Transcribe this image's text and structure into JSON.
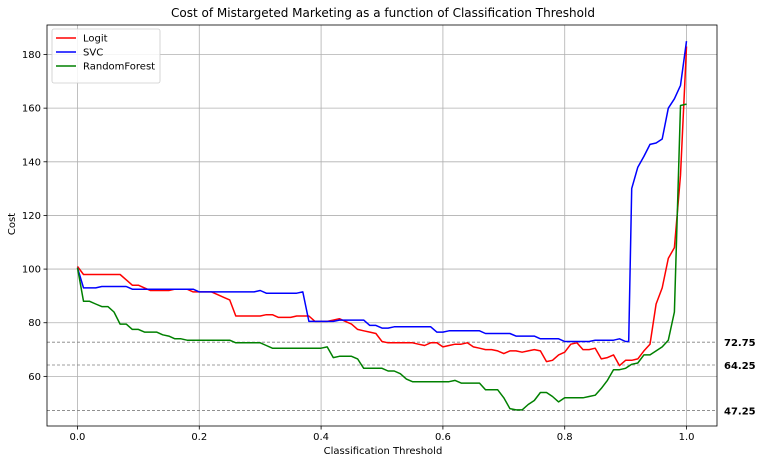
{
  "chart_data": {
    "type": "line",
    "title": "Cost of Mistargeted Marketing as a function of Classification Threshold",
    "xlabel": "Classification Threshold",
    "ylabel": "Cost",
    "xlim": [
      -0.05,
      1.05
    ],
    "ylim": [
      41.5,
      191
    ],
    "xticks": [
      0.0,
      0.2,
      0.4,
      0.6,
      0.8,
      1.0
    ],
    "xtick_labels": [
      "0.0",
      "0.2",
      "0.4",
      "0.6",
      "0.8",
      "1.0"
    ],
    "yticks": [
      60,
      80,
      100,
      120,
      140,
      160,
      180
    ],
    "ytick_labels": [
      "60",
      "80",
      "100",
      "120",
      "140",
      "160",
      "180"
    ],
    "grid": true,
    "legend_position": "top-left",
    "hlines": [
      {
        "value": 72.75,
        "label": "72.75"
      },
      {
        "value": 64.25,
        "label": "64.25"
      },
      {
        "value": 47.25,
        "label": "47.25"
      }
    ],
    "series": [
      {
        "name": "Logit",
        "color": "#ff0000",
        "points": [
          [
            0.0,
            101
          ],
          [
            0.01,
            98
          ],
          [
            0.02,
            98
          ],
          [
            0.03,
            98
          ],
          [
            0.04,
            98
          ],
          [
            0.05,
            98
          ],
          [
            0.06,
            98
          ],
          [
            0.07,
            98
          ],
          [
            0.08,
            96
          ],
          [
            0.09,
            94
          ],
          [
            0.1,
            94
          ],
          [
            0.11,
            93
          ],
          [
            0.12,
            92
          ],
          [
            0.13,
            92
          ],
          [
            0.14,
            92
          ],
          [
            0.15,
            92
          ],
          [
            0.16,
            92.5
          ],
          [
            0.17,
            92.5
          ],
          [
            0.18,
            92.5
          ],
          [
            0.19,
            91.5
          ],
          [
            0.2,
            91.5
          ],
          [
            0.21,
            91.5
          ],
          [
            0.22,
            91.5
          ],
          [
            0.23,
            90.5
          ],
          [
            0.24,
            89.5
          ],
          [
            0.25,
            88.5
          ],
          [
            0.26,
            82.5
          ],
          [
            0.27,
            82.5
          ],
          [
            0.28,
            82.5
          ],
          [
            0.29,
            82.5
          ],
          [
            0.3,
            82.5
          ],
          [
            0.31,
            83
          ],
          [
            0.32,
            83
          ],
          [
            0.33,
            82
          ],
          [
            0.34,
            82
          ],
          [
            0.35,
            82
          ],
          [
            0.36,
            82.5
          ],
          [
            0.37,
            82.5
          ],
          [
            0.38,
            82.5
          ],
          [
            0.39,
            80.5
          ],
          [
            0.4,
            80.5
          ],
          [
            0.41,
            80.5
          ],
          [
            0.42,
            81
          ],
          [
            0.43,
            81.5
          ],
          [
            0.44,
            80.5
          ],
          [
            0.45,
            79.5
          ],
          [
            0.46,
            77.5
          ],
          [
            0.47,
            77
          ],
          [
            0.48,
            76.5
          ],
          [
            0.49,
            76
          ],
          [
            0.5,
            73
          ],
          [
            0.51,
            72.5
          ],
          [
            0.52,
            72.5
          ],
          [
            0.53,
            72.5
          ],
          [
            0.54,
            72.5
          ],
          [
            0.55,
            72.5
          ],
          [
            0.56,
            72
          ],
          [
            0.57,
            71.5
          ],
          [
            0.58,
            72.5
          ],
          [
            0.59,
            72.5
          ],
          [
            0.6,
            71
          ],
          [
            0.61,
            71.5
          ],
          [
            0.62,
            72
          ],
          [
            0.63,
            72
          ],
          [
            0.64,
            72.5
          ],
          [
            0.65,
            71
          ],
          [
            0.66,
            70.5
          ],
          [
            0.67,
            70
          ],
          [
            0.68,
            70
          ],
          [
            0.69,
            69.5
          ],
          [
            0.7,
            68.5
          ],
          [
            0.71,
            69.5
          ],
          [
            0.72,
            69.5
          ],
          [
            0.73,
            69
          ],
          [
            0.74,
            69.5
          ],
          [
            0.75,
            70
          ],
          [
            0.76,
            69.5
          ],
          [
            0.77,
            65.5
          ],
          [
            0.78,
            66
          ],
          [
            0.79,
            68
          ],
          [
            0.8,
            69
          ],
          [
            0.81,
            72
          ],
          [
            0.82,
            72.5
          ],
          [
            0.83,
            70
          ],
          [
            0.84,
            70
          ],
          [
            0.85,
            70.5
          ],
          [
            0.86,
            66.5
          ],
          [
            0.87,
            67
          ],
          [
            0.88,
            68
          ],
          [
            0.89,
            64
          ],
          [
            0.9,
            66
          ],
          [
            0.91,
            66
          ],
          [
            0.92,
            66.5
          ],
          [
            0.93,
            69.5
          ],
          [
            0.94,
            72
          ],
          [
            0.95,
            87
          ],
          [
            0.96,
            93
          ],
          [
            0.97,
            104
          ],
          [
            0.98,
            108
          ],
          [
            0.99,
            135
          ],
          [
            1.0,
            183
          ]
        ]
      },
      {
        "name": "SVC",
        "color": "#0000ff",
        "points": [
          [
            0.0,
            100.5
          ],
          [
            0.01,
            93
          ],
          [
            0.02,
            93
          ],
          [
            0.03,
            93
          ],
          [
            0.04,
            93.5
          ],
          [
            0.05,
            93.5
          ],
          [
            0.06,
            93.5
          ],
          [
            0.07,
            93.5
          ],
          [
            0.08,
            93.5
          ],
          [
            0.09,
            92.5
          ],
          [
            0.1,
            92.5
          ],
          [
            0.11,
            92.5
          ],
          [
            0.12,
            92.5
          ],
          [
            0.13,
            92.5
          ],
          [
            0.14,
            92.5
          ],
          [
            0.15,
            92.5
          ],
          [
            0.16,
            92.5
          ],
          [
            0.17,
            92.5
          ],
          [
            0.18,
            92.5
          ],
          [
            0.19,
            92.5
          ],
          [
            0.2,
            91.5
          ],
          [
            0.21,
            91.5
          ],
          [
            0.22,
            91.5
          ],
          [
            0.23,
            91.5
          ],
          [
            0.24,
            91.5
          ],
          [
            0.25,
            91.5
          ],
          [
            0.26,
            91.5
          ],
          [
            0.27,
            91.5
          ],
          [
            0.28,
            91.5
          ],
          [
            0.29,
            91.5
          ],
          [
            0.3,
            92
          ],
          [
            0.31,
            91
          ],
          [
            0.32,
            91
          ],
          [
            0.33,
            91
          ],
          [
            0.34,
            91
          ],
          [
            0.35,
            91
          ],
          [
            0.36,
            91
          ],
          [
            0.37,
            91.5
          ],
          [
            0.38,
            80.5
          ],
          [
            0.39,
            80.5
          ],
          [
            0.4,
            80.5
          ],
          [
            0.41,
            80.5
          ],
          [
            0.42,
            80.5
          ],
          [
            0.43,
            81
          ],
          [
            0.44,
            81
          ],
          [
            0.45,
            81
          ],
          [
            0.46,
            81
          ],
          [
            0.47,
            81
          ],
          [
            0.48,
            79
          ],
          [
            0.49,
            79
          ],
          [
            0.5,
            78
          ],
          [
            0.51,
            78
          ],
          [
            0.52,
            78.5
          ],
          [
            0.53,
            78.5
          ],
          [
            0.54,
            78.5
          ],
          [
            0.55,
            78.5
          ],
          [
            0.56,
            78.5
          ],
          [
            0.57,
            78.5
          ],
          [
            0.58,
            78.5
          ],
          [
            0.59,
            76.5
          ],
          [
            0.6,
            76.5
          ],
          [
            0.61,
            77
          ],
          [
            0.62,
            77
          ],
          [
            0.63,
            77
          ],
          [
            0.64,
            77
          ],
          [
            0.65,
            77
          ],
          [
            0.66,
            77
          ],
          [
            0.67,
            76
          ],
          [
            0.68,
            76
          ],
          [
            0.69,
            76
          ],
          [
            0.7,
            76
          ],
          [
            0.71,
            76
          ],
          [
            0.72,
            75
          ],
          [
            0.73,
            75
          ],
          [
            0.74,
            75
          ],
          [
            0.75,
            75
          ],
          [
            0.76,
            74
          ],
          [
            0.77,
            74
          ],
          [
            0.78,
            74
          ],
          [
            0.79,
            74
          ],
          [
            0.8,
            73
          ],
          [
            0.81,
            73
          ],
          [
            0.82,
            73
          ],
          [
            0.83,
            73
          ],
          [
            0.84,
            73
          ],
          [
            0.85,
            73.5
          ],
          [
            0.86,
            73.5
          ],
          [
            0.87,
            73.5
          ],
          [
            0.88,
            73.5
          ],
          [
            0.89,
            74
          ],
          [
            0.9,
            73
          ],
          [
            0.905,
            73
          ],
          [
            0.91,
            130
          ],
          [
            0.92,
            138
          ],
          [
            0.93,
            142
          ],
          [
            0.94,
            146.5
          ],
          [
            0.95,
            147
          ],
          [
            0.96,
            148.5
          ],
          [
            0.97,
            160
          ],
          [
            0.98,
            163.5
          ],
          [
            0.99,
            168.5
          ],
          [
            1.0,
            185
          ]
        ]
      },
      {
        "name": "RandomForest",
        "color": "#008000",
        "points": [
          [
            0.0,
            100.5
          ],
          [
            0.01,
            88
          ],
          [
            0.02,
            88
          ],
          [
            0.03,
            87
          ],
          [
            0.04,
            86
          ],
          [
            0.05,
            86
          ],
          [
            0.06,
            84
          ],
          [
            0.07,
            79.5
          ],
          [
            0.08,
            79.5
          ],
          [
            0.09,
            77.5
          ],
          [
            0.1,
            77.5
          ],
          [
            0.11,
            76.5
          ],
          [
            0.12,
            76.5
          ],
          [
            0.13,
            76.5
          ],
          [
            0.14,
            75.5
          ],
          [
            0.15,
            75
          ],
          [
            0.16,
            74
          ],
          [
            0.17,
            74
          ],
          [
            0.18,
            73.5
          ],
          [
            0.19,
            73.5
          ],
          [
            0.2,
            73.5
          ],
          [
            0.21,
            73.5
          ],
          [
            0.22,
            73.5
          ],
          [
            0.23,
            73.5
          ],
          [
            0.24,
            73.5
          ],
          [
            0.25,
            73.5
          ],
          [
            0.26,
            72.5
          ],
          [
            0.27,
            72.5
          ],
          [
            0.28,
            72.5
          ],
          [
            0.29,
            72.5
          ],
          [
            0.3,
            72.5
          ],
          [
            0.31,
            71.5
          ],
          [
            0.32,
            70.5
          ],
          [
            0.33,
            70.5
          ],
          [
            0.34,
            70.5
          ],
          [
            0.35,
            70.5
          ],
          [
            0.36,
            70.5
          ],
          [
            0.37,
            70.5
          ],
          [
            0.38,
            70.5
          ],
          [
            0.39,
            70.5
          ],
          [
            0.4,
            70.5
          ],
          [
            0.41,
            71
          ],
          [
            0.42,
            67
          ],
          [
            0.43,
            67.5
          ],
          [
            0.44,
            67.5
          ],
          [
            0.45,
            67.5
          ],
          [
            0.46,
            66.5
          ],
          [
            0.47,
            63
          ],
          [
            0.48,
            63
          ],
          [
            0.49,
            63
          ],
          [
            0.5,
            63
          ],
          [
            0.51,
            62
          ],
          [
            0.52,
            62
          ],
          [
            0.53,
            61
          ],
          [
            0.54,
            59
          ],
          [
            0.55,
            58
          ],
          [
            0.56,
            58
          ],
          [
            0.57,
            58
          ],
          [
            0.58,
            58
          ],
          [
            0.59,
            58
          ],
          [
            0.6,
            58
          ],
          [
            0.61,
            58
          ],
          [
            0.62,
            58.5
          ],
          [
            0.63,
            57.5
          ],
          [
            0.64,
            57.5
          ],
          [
            0.65,
            57.5
          ],
          [
            0.66,
            57.5
          ],
          [
            0.67,
            55
          ],
          [
            0.68,
            55
          ],
          [
            0.69,
            55
          ],
          [
            0.7,
            52
          ],
          [
            0.71,
            48
          ],
          [
            0.72,
            47.5
          ],
          [
            0.73,
            47.5
          ],
          [
            0.74,
            49.5
          ],
          [
            0.75,
            51
          ],
          [
            0.76,
            54
          ],
          [
            0.77,
            54
          ],
          [
            0.78,
            52.5
          ],
          [
            0.79,
            50.5
          ],
          [
            0.8,
            52
          ],
          [
            0.81,
            52
          ],
          [
            0.82,
            52
          ],
          [
            0.83,
            52
          ],
          [
            0.84,
            52.5
          ],
          [
            0.85,
            53
          ],
          [
            0.86,
            55.5
          ],
          [
            0.87,
            58.5
          ],
          [
            0.88,
            62.5
          ],
          [
            0.89,
            62.5
          ],
          [
            0.9,
            63
          ],
          [
            0.91,
            64.5
          ],
          [
            0.92,
            65
          ],
          [
            0.93,
            68
          ],
          [
            0.94,
            68
          ],
          [
            0.95,
            69.5
          ],
          [
            0.96,
            71
          ],
          [
            0.97,
            73.5
          ],
          [
            0.98,
            84
          ],
          [
            0.99,
            161
          ],
          [
            1.0,
            161.5
          ]
        ]
      }
    ]
  }
}
